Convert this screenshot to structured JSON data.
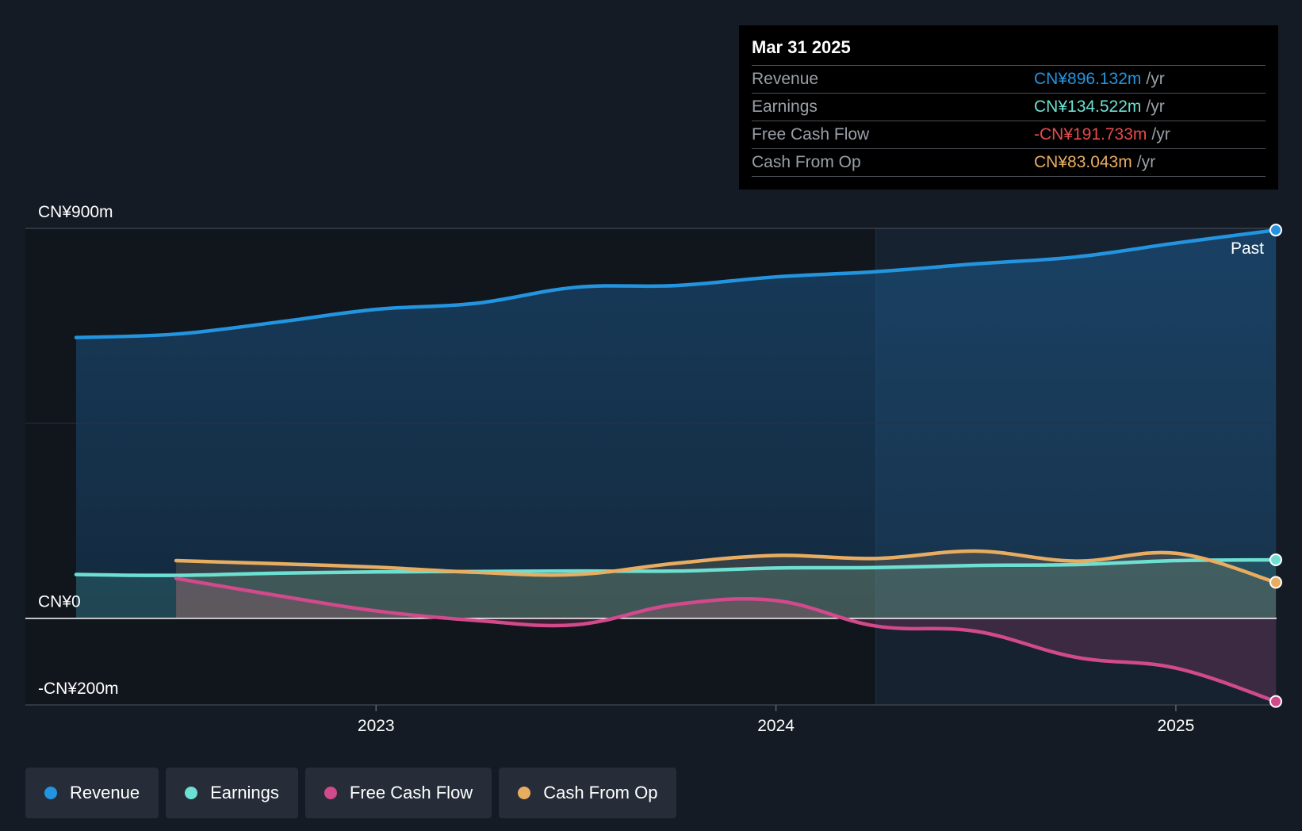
{
  "tooltip": {
    "date": "Mar 31 2025",
    "rows": [
      {
        "label": "Revenue",
        "value": "CN¥896.132m",
        "unit": "/yr",
        "color": "#2394df"
      },
      {
        "label": "Earnings",
        "value": "CN¥134.522m",
        "unit": "/yr",
        "color": "#6de0d2"
      },
      {
        "label": "Free Cash Flow",
        "value": "-CN¥191.733m",
        "unit": "/yr",
        "color": "#e64b4b"
      },
      {
        "label": "Cash From Op",
        "value": "CN¥83.043m",
        "unit": "/yr",
        "color": "#e9ad61"
      }
    ]
  },
  "legend": [
    {
      "label": "Revenue",
      "color": "#2394df"
    },
    {
      "label": "Earnings",
      "color": "#6de0d2"
    },
    {
      "label": "Free Cash Flow",
      "color": "#d04a8c"
    },
    {
      "label": "Cash From Op",
      "color": "#e9ad61"
    }
  ],
  "chart_data": {
    "type": "area",
    "ylim": [
      -200,
      900
    ],
    "y_tick_labels": [
      {
        "value": 900,
        "label": "CN¥900m"
      },
      {
        "value": 0,
        "label": "CN¥0"
      },
      {
        "value": -200,
        "label": "-CN¥200m"
      }
    ],
    "x_tick_labels": [
      {
        "value": 2023.0,
        "label": "2023"
      },
      {
        "value": 2024.0,
        "label": "2024"
      },
      {
        "value": 2025.0,
        "label": "2025"
      }
    ],
    "past_label": "Past",
    "past_start": 2024.25,
    "grid": true,
    "legend_position": "bottom-left",
    "series": [
      {
        "name": "Revenue",
        "color": "#2394df",
        "x": [
          2022.25,
          2022.5,
          2022.75,
          2023.0,
          2023.25,
          2023.5,
          2023.75,
          2024.0,
          2024.25,
          2024.5,
          2024.75,
          2025.0,
          2025.25
        ],
        "y": [
          648,
          656,
          683,
          713,
          727,
          764,
          768,
          788,
          800,
          818,
          834,
          866,
          896
        ]
      },
      {
        "name": "Earnings",
        "color": "#6de0d2",
        "x": [
          2022.25,
          2022.5,
          2022.75,
          2023.0,
          2023.25,
          2023.5,
          2023.75,
          2024.0,
          2024.25,
          2024.5,
          2024.75,
          2025.0,
          2025.25
        ],
        "y": [
          101,
          99,
          104,
          107,
          108,
          109,
          109,
          116,
          117,
          122,
          124,
          133,
          135
        ]
      },
      {
        "name": "Free Cash Flow",
        "color": "#d04a8c",
        "x": [
          2022.5,
          2022.75,
          2023.0,
          2023.25,
          2023.5,
          2023.75,
          2024.0,
          2024.25,
          2024.5,
          2024.75,
          2025.0,
          2025.25
        ],
        "y": [
          92,
          53,
          17,
          -5,
          -15,
          32,
          41,
          -18,
          -30,
          -90,
          -115,
          -192
        ]
      },
      {
        "name": "Cash From Op",
        "color": "#e9ad61",
        "x": [
          2022.5,
          2022.75,
          2023.0,
          2023.25,
          2023.5,
          2023.75,
          2024.0,
          2024.25,
          2024.5,
          2024.75,
          2025.0,
          2025.25
        ],
        "y": [
          133,
          126,
          118,
          106,
          101,
          127,
          145,
          138,
          155,
          132,
          150,
          83
        ]
      }
    ]
  }
}
